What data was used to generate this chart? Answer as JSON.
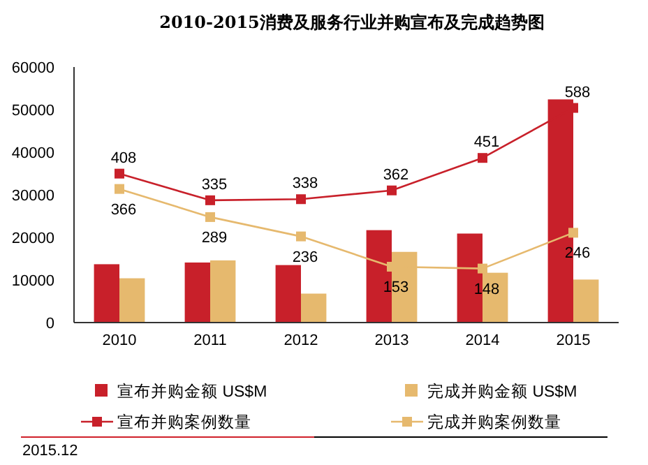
{
  "chart_data": {
    "type": "bar",
    "title": "2010-2015消费及服务行业并购宣布及完成趋势图",
    "categories": [
      "2010",
      "2011",
      "2012",
      "2013",
      "2014",
      "2015"
    ],
    "series": [
      {
        "name": "宣布并购金额 US$M",
        "color": "#c8202a",
        "values": [
          13700,
          14100,
          13500,
          21700,
          20900,
          52400
        ]
      },
      {
        "name": "完成并购金额 US$M",
        "color": "#e6b96e",
        "values": [
          10400,
          14600,
          6800,
          16600,
          11700,
          10100
        ]
      },
      {
        "name": "宣布并购案例数量",
        "type": "line",
        "axis": "y2",
        "color": "#c8202a",
        "marker": "square",
        "values": [
          408,
          335,
          338,
          362,
          451,
          588
        ],
        "value_labels": [
          "408",
          "335",
          "338",
          "362",
          "451",
          "588"
        ]
      },
      {
        "name": "完成并购案例数量",
        "type": "line",
        "axis": "y2",
        "color": "#e6b96e",
        "marker": "square",
        "values": [
          366,
          289,
          236,
          153,
          148,
          246
        ],
        "value_labels": [
          "366",
          "289",
          "236",
          "153",
          "148",
          "246"
        ]
      }
    ],
    "ylim": [
      0,
      60000
    ],
    "yticks": [
      0,
      10000,
      20000,
      30000,
      40000,
      50000,
      60000
    ],
    "y2lim": [
      0,
      700
    ],
    "grid": false,
    "legend": "bottom",
    "annotations": [
      "2015.12"
    ]
  }
}
